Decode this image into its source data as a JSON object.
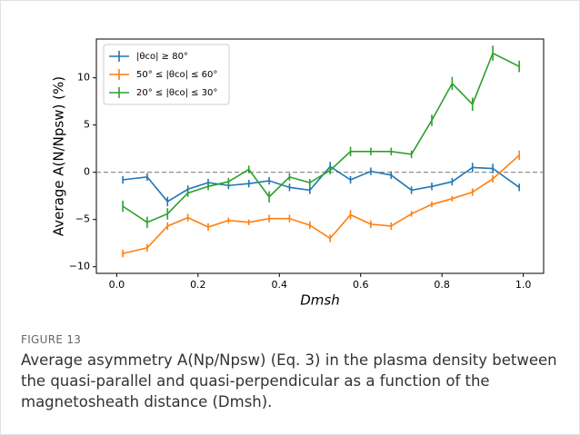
{
  "chart_data": {
    "type": "line",
    "x": [
      0.015,
      0.075,
      0.125,
      0.175,
      0.225,
      0.275,
      0.325,
      0.375,
      0.425,
      0.475,
      0.525,
      0.575,
      0.625,
      0.675,
      0.725,
      0.775,
      0.825,
      0.875,
      0.925,
      0.99
    ],
    "series": [
      {
        "name": "|θco| ≥ 80°",
        "color": "#1f77b4",
        "values": [
          -0.8,
          -0.5,
          -3.1,
          -1.8,
          -1.1,
          -1.4,
          -1.2,
          -0.9,
          -1.6,
          -1.9,
          0.6,
          -0.8,
          0.1,
          -0.3,
          -1.9,
          -1.5,
          -1.0,
          0.5,
          0.4,
          -1.6
        ],
        "errors": [
          0.4,
          0.4,
          0.5,
          0.4,
          0.4,
          0.4,
          0.4,
          0.4,
          0.4,
          0.4,
          0.5,
          0.4,
          0.4,
          0.4,
          0.4,
          0.4,
          0.4,
          0.5,
          0.5,
          0.4
        ]
      },
      {
        "name": "50° ≤ |θco| ≤ 60°",
        "color": "#ff7f0e",
        "values": [
          -8.6,
          -8.0,
          -5.7,
          -4.8,
          -5.8,
          -5.1,
          -5.3,
          -4.9,
          -4.9,
          -5.6,
          -7.0,
          -4.5,
          -5.5,
          -5.7,
          -4.4,
          -3.4,
          -2.8,
          -2.1,
          -0.7,
          1.8
        ],
        "errors": [
          0.4,
          0.4,
          0.4,
          0.4,
          0.4,
          0.3,
          0.3,
          0.4,
          0.4,
          0.4,
          0.4,
          0.5,
          0.4,
          0.4,
          0.3,
          0.3,
          0.3,
          0.4,
          0.4,
          0.5
        ]
      },
      {
        "name": "20° ≤ |θco| ≤ 30°",
        "color": "#2ca02c",
        "values": [
          -3.6,
          -5.3,
          -4.4,
          -2.2,
          -1.5,
          -1.0,
          0.3,
          -2.6,
          -0.5,
          -1.1,
          0.2,
          2.2,
          2.2,
          2.2,
          1.9,
          5.5,
          9.4,
          7.2,
          12.6,
          11.2
        ],
        "errors": [
          0.6,
          0.6,
          0.6,
          0.4,
          0.4,
          0.4,
          0.4,
          0.6,
          0.4,
          0.4,
          0.4,
          0.5,
          0.4,
          0.4,
          0.4,
          0.6,
          0.7,
          0.7,
          0.8,
          0.6
        ]
      }
    ],
    "xlim": [
      -0.05,
      1.05
    ],
    "ylim": [
      -10.7,
      14.1
    ],
    "xticks": [
      {
        "value": 0,
        "label": "0.0"
      },
      0.2,
      0.4,
      0.6,
      0.8,
      {
        "value": 1,
        "label": "1.0"
      }
    ],
    "yticks": [
      {
        "value": -10,
        "label": "−10"
      },
      {
        "value": -5,
        "label": "−5"
      },
      0,
      5,
      10
    ],
    "hlines": [
      0
    ],
    "xlabel": "Dmsh",
    "ylabel": "Average A(N/Npsw) (%)",
    "legend": "upper left"
  },
  "caption": {
    "label": "FIGURE 13",
    "text": "Average asymmetry A(Np/Npsw) (Eq. 3) in the plasma density between the quasi-parallel and quasi-perpendicular as a function of the magnetosheath distance (Dmsh)."
  }
}
